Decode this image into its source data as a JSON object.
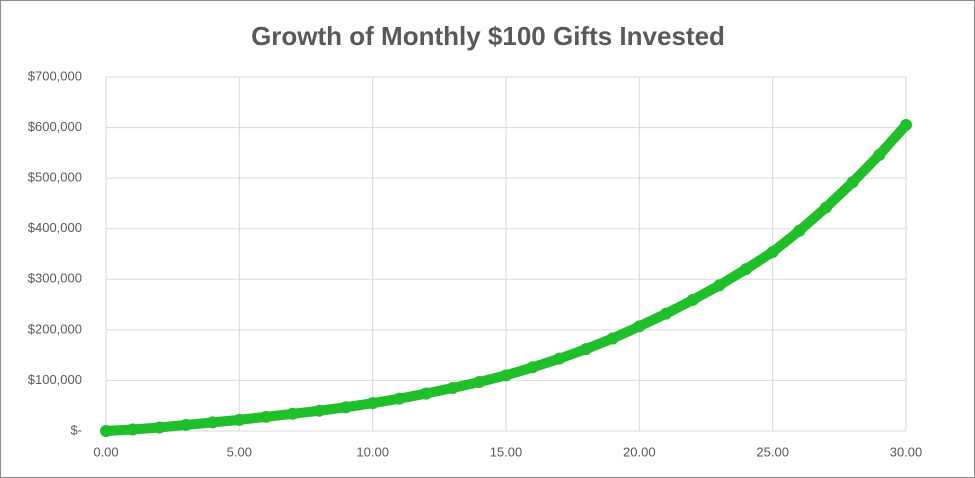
{
  "chart_data": {
    "type": "scatter",
    "title": "Growth of Monthly $100 Gifts Invested",
    "series": [
      {
        "color": "#1fbf2a",
        "x": [
          0,
          1,
          2,
          3,
          4,
          5,
          6,
          7,
          8,
          9,
          10,
          11,
          12,
          13,
          14,
          15,
          16,
          17,
          18,
          19,
          20,
          21,
          22,
          23,
          24,
          25,
          26,
          27,
          28,
          29,
          30
        ],
        "values": [
          0,
          3000,
          7000,
          12000,
          17000,
          22000,
          28000,
          34000,
          40000,
          47000,
          55000,
          64000,
          74000,
          85000,
          97000,
          110000,
          126000,
          143000,
          162000,
          183000,
          207000,
          232000,
          259000,
          288000,
          320000,
          354000,
          396000,
          442000,
          492000,
          546000,
          605000
        ]
      }
    ],
    "xlim": [
      0,
      30
    ],
    "xticks": [
      {
        "value": 0,
        "label": "0.00"
      },
      {
        "value": 5,
        "label": "5.00"
      },
      {
        "value": 10,
        "label": "10.00"
      },
      {
        "value": 15,
        "label": "15.00"
      },
      {
        "value": 20,
        "label": "20.00"
      },
      {
        "value": 25,
        "label": "25.00"
      },
      {
        "value": 30,
        "label": "30.00"
      }
    ],
    "ylim": [
      0,
      700000
    ],
    "yticks": [
      {
        "value": 0,
        "label": "$-"
      },
      {
        "value": 100000,
        "label": "$100,000"
      },
      {
        "value": 200000,
        "label": "$200,000"
      },
      {
        "value": 300000,
        "label": "$300,000"
      },
      {
        "value": 400000,
        "label": "$400,000"
      },
      {
        "value": 500000,
        "label": "$500,000"
      },
      {
        "value": 600000,
        "label": "$600,000"
      },
      {
        "value": 700000,
        "label": "$700,000"
      }
    ],
    "grid": true
  }
}
